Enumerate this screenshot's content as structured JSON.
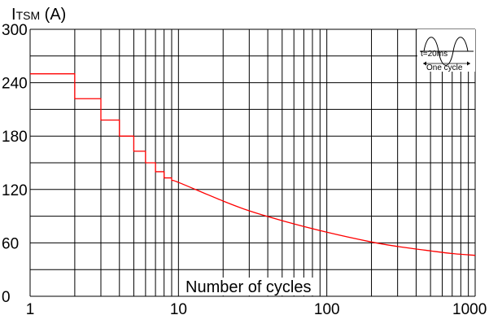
{
  "chart_data": {
    "type": "line",
    "ylabel_main": "I",
    "ylabel_sub": "TSM",
    "ylabel_unit": " (A)",
    "xlabel": "Number of cycles",
    "x_scale": "log",
    "xlim": [
      1,
      1000
    ],
    "ylim": [
      0,
      300
    ],
    "x_ticks": [
      1,
      10,
      100,
      1000
    ],
    "x_tick_labels": [
      "1",
      "10",
      "100",
      "1000"
    ],
    "y_ticks": [
      0,
      60,
      120,
      180,
      240,
      300
    ],
    "y_tick_labels": [
      "0",
      "60",
      "120",
      "180",
      "240",
      "300"
    ],
    "grid": true,
    "line_color": "#ff0000",
    "series": [
      {
        "step_points": [
          [
            1,
            250
          ],
          [
            2,
            222
          ],
          [
            3,
            198
          ],
          [
            4,
            180
          ],
          [
            5,
            163
          ],
          [
            6,
            150
          ],
          [
            7,
            140
          ],
          [
            8,
            133
          ],
          [
            9,
            130
          ]
        ],
        "curve_points": [
          [
            9,
            130
          ],
          [
            10,
            128
          ],
          [
            20,
            107
          ],
          [
            30,
            96
          ],
          [
            50,
            85
          ],
          [
            100,
            72
          ],
          [
            200,
            61
          ],
          [
            300,
            56
          ],
          [
            500,
            51
          ],
          [
            700,
            48
          ],
          [
            1000,
            46
          ]
        ]
      }
    ],
    "inset": {
      "time_label": "t=20ms",
      "cycle_label": "One cycle"
    }
  }
}
